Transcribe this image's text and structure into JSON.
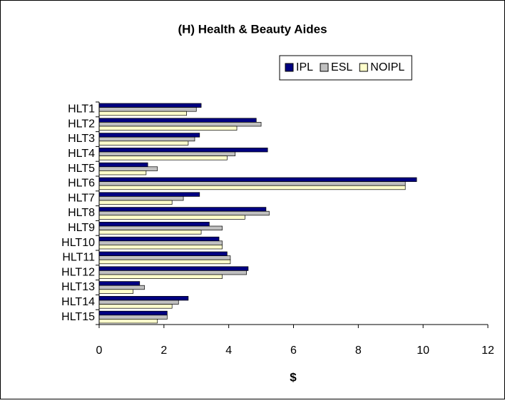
{
  "chart_data": {
    "type": "hbar",
    "title": "(H) Health & Beauty Aides",
    "xlabel": "$",
    "categories": [
      "HLT1",
      "HLT2",
      "HLT3",
      "HLT4",
      "HLT5",
      "HLT6",
      "HLT7",
      "HLT8",
      "HLT9",
      "HLT10",
      "HLT11",
      "HLT12",
      "HLT13",
      "HLT14",
      "HLT15"
    ],
    "series": [
      {
        "name": "IPL",
        "color": "#000080",
        "values": [
          3.15,
          4.85,
          3.1,
          5.2,
          1.5,
          9.8,
          3.1,
          5.15,
          3.4,
          3.7,
          3.95,
          4.6,
          1.25,
          2.75,
          2.1
        ]
      },
      {
        "name": "ESL",
        "color": "#c0c0c0",
        "values": [
          3.0,
          5.0,
          2.95,
          4.2,
          1.8,
          9.45,
          2.6,
          5.25,
          3.8,
          3.8,
          4.05,
          4.55,
          1.4,
          2.45,
          2.1
        ]
      },
      {
        "name": "NOIPL",
        "color": "#ffffcc",
        "values": [
          2.7,
          4.25,
          2.75,
          3.95,
          1.45,
          9.45,
          2.25,
          4.5,
          3.15,
          3.8,
          4.05,
          3.8,
          1.05,
          2.25,
          1.8
        ]
      }
    ],
    "xlim": [
      0,
      12
    ],
    "xticks": [
      0,
      2,
      4,
      6,
      8,
      10,
      12
    ],
    "legend": "top-right"
  }
}
